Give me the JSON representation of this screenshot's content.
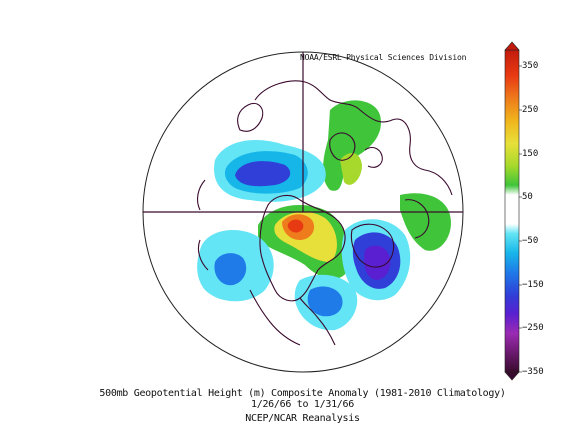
{
  "credit": "NOAA/ESRL Physical Sciences Division",
  "caption": {
    "line1": "500mb Geopotential Height (m) Composite Anomaly (1981-2010 Climatology)",
    "line2": "1/26/66 to 1/31/66",
    "line3": "NCEP/NCAR Reanalysis"
  },
  "colorbar": {
    "ticks": [
      "350",
      "250",
      "150",
      "50",
      "−50",
      "−150",
      "−250",
      "−350"
    ],
    "colors": [
      "#3a0a2e",
      "#6a1a6e",
      "#9b2bb3",
      "#5a1fd0",
      "#2f3fd8",
      "#1f7be8",
      "#17b6e9",
      "#63e5f5",
      "#ffffff",
      "#ffffff",
      "#3fc43a",
      "#a6d92b",
      "#e8e03a",
      "#f0b51d",
      "#ee7b1c",
      "#e83a12",
      "#c21b0d"
    ]
  },
  "map": {
    "projection": "north polar stereographic",
    "variable": "500mb geopotential height anomaly",
    "units": "m"
  }
}
